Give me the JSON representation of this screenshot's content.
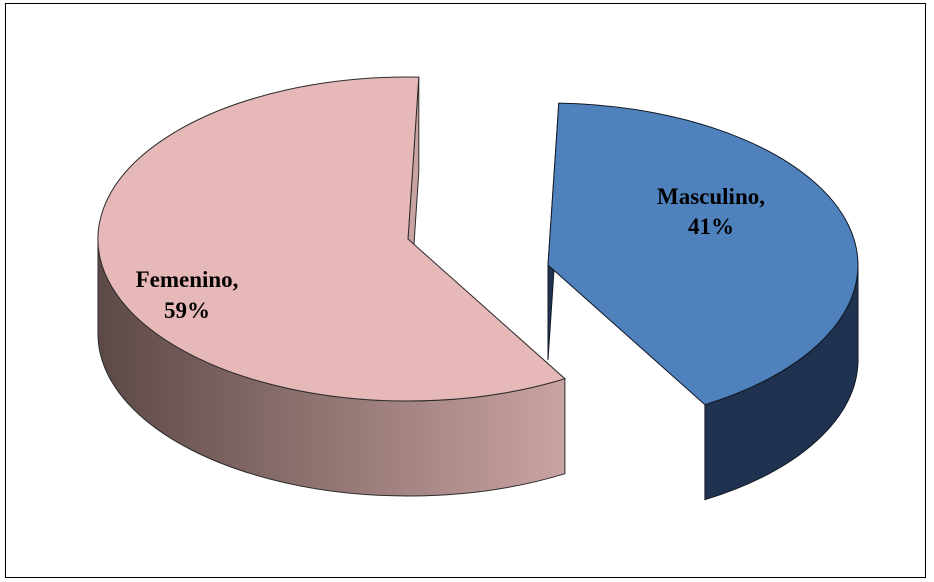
{
  "chart_data": {
    "type": "pie",
    "style": "3d-exploded",
    "title": "",
    "categories": [
      "Masculino",
      "Femenino"
    ],
    "values": [
      41,
      59
    ],
    "unit": "%",
    "slices": [
      {
        "name": "Masculino",
        "value": 41,
        "label_name": "Masculino,",
        "label_value": "41%",
        "top_color": "#4f81bd",
        "side_color": "#1f324f"
      },
      {
        "name": "Femenino",
        "value": 59,
        "label_name": "Femenino,",
        "label_value": "59%",
        "top_color": "#e6b8b7",
        "side_color_light": "#c9a3a2",
        "side_color_dark": "#5c4946"
      }
    ],
    "legend": "none",
    "grid": false
  }
}
